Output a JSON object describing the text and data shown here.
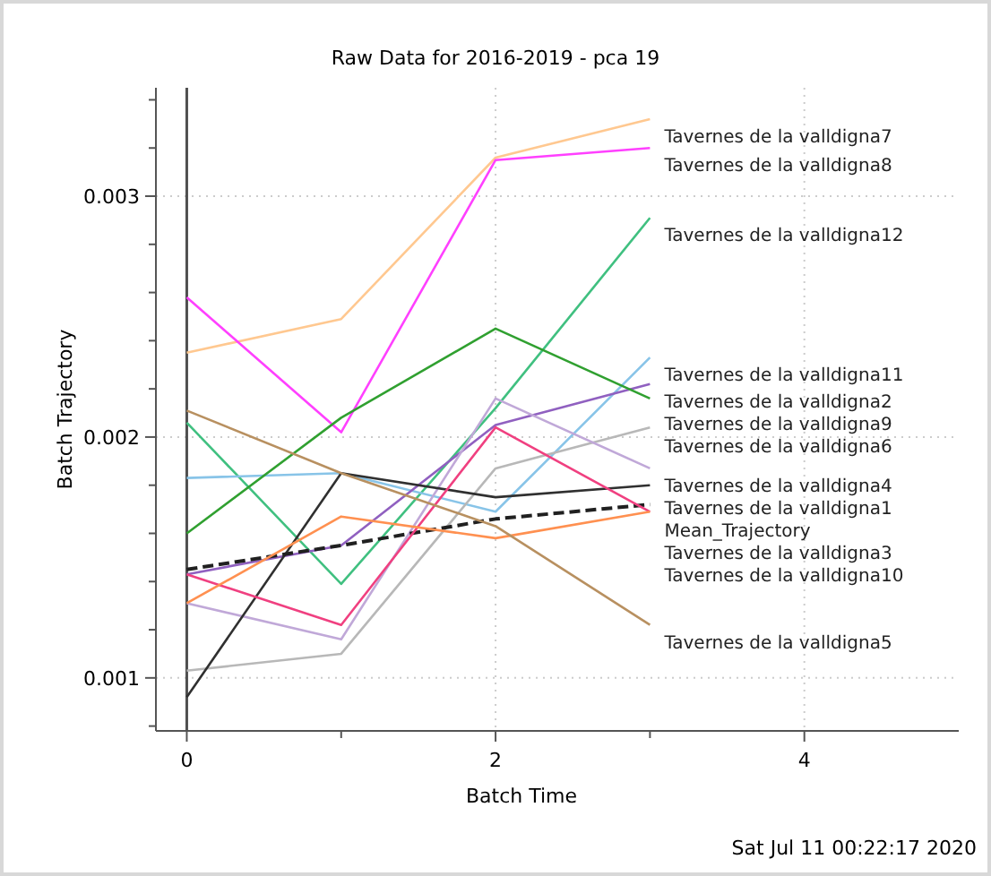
{
  "chart_data": {
    "type": "line",
    "title": "Raw Data for 2016-2019 - pca 19",
    "xlabel": "Batch Time",
    "ylabel": "Batch Trajectory",
    "x": [
      0,
      1,
      2,
      3
    ],
    "xlim": [
      -0.2,
      5
    ],
    "xticks": [
      0,
      {
        "value": 1,
        "label": null
      },
      2,
      {
        "value": 3,
        "label": null
      },
      4
    ],
    "ylim": [
      0.00078,
      0.00345
    ],
    "yticks": [
      {
        "value": 0.0008,
        "label": null
      },
      0.001,
      {
        "value": 0.0012,
        "label": null
      },
      {
        "value": 0.0014,
        "label": null
      },
      {
        "value": 0.0016,
        "label": null
      },
      {
        "value": 0.0018,
        "label": null
      },
      0.002,
      {
        "value": 0.0022,
        "label": null
      },
      {
        "value": 0.0024,
        "label": null
      },
      {
        "value": 0.0026,
        "label": null
      },
      {
        "value": 0.0028,
        "label": null
      },
      0.003,
      {
        "value": 0.0032,
        "label": null
      },
      {
        "value": 0.0034,
        "label": null
      }
    ],
    "grid": true,
    "marker": "none",
    "ref_lines": [
      {
        "axis": "x",
        "value": 0,
        "color": "#505050"
      }
    ],
    "annotations": [
      "Sat Jul 11 00:22:17 2020"
    ],
    "series": [
      {
        "name": "Tavernes de la valldigna7",
        "color": "#ffc890",
        "values": [
          0.00235,
          0.00249,
          0.00316,
          0.00332
        ]
      },
      {
        "name": "Tavernes de la valldigna8",
        "color": "#ff40ff",
        "values": [
          0.00258,
          0.00202,
          0.00315,
          0.0032
        ]
      },
      {
        "name": "Tavernes de la valldigna12",
        "color": "#40c080",
        "values": [
          0.00206,
          0.00139,
          0.00212,
          0.00291
        ]
      },
      {
        "name": "Tavernes de la valldigna11",
        "color": "#88c4e8",
        "values": [
          0.00183,
          0.00185,
          0.00169,
          0.00233
        ]
      },
      {
        "name": "Tavernes de la valldigna2",
        "color": "#9060c0",
        "values": [
          0.00143,
          0.00155,
          0.00205,
          0.00222
        ]
      },
      {
        "name": "Tavernes de la valldigna9",
        "color": "#30a030",
        "values": [
          0.0016,
          0.00208,
          0.00245,
          0.00216
        ]
      },
      {
        "name": "Tavernes de la valldigna6",
        "color": "#b8b8b8",
        "values": [
          0.00103,
          0.0011,
          0.00187,
          0.00204
        ]
      },
      {
        "name": "Tavernes de la valldigna4",
        "color": "#c0a8d8",
        "values": [
          0.00131,
          0.00116,
          0.00216,
          0.00187
        ]
      },
      {
        "name": "Tavernes de la valldigna1",
        "color": "#303030",
        "values": [
          0.00092,
          0.00185,
          0.00175,
          0.0018
        ]
      },
      {
        "name": "Mean_Trajectory",
        "color": "#202020",
        "line_style": "dashed",
        "values": [
          0.00145,
          0.00155,
          0.00166,
          0.00172
        ]
      },
      {
        "name": "Tavernes de la valldigna3",
        "color": "#f04080",
        "values": [
          0.00143,
          0.00122,
          0.00204,
          0.00169
        ]
      },
      {
        "name": "Tavernes de la valldigna10",
        "color": "#ff9050",
        "values": [
          0.00131,
          0.00167,
          0.00158,
          0.00169
        ]
      },
      {
        "name": "Tavernes de la valldigna5",
        "color": "#b89060",
        "values": [
          0.00211,
          0.00185,
          0.00163,
          0.00122
        ]
      }
    ]
  }
}
